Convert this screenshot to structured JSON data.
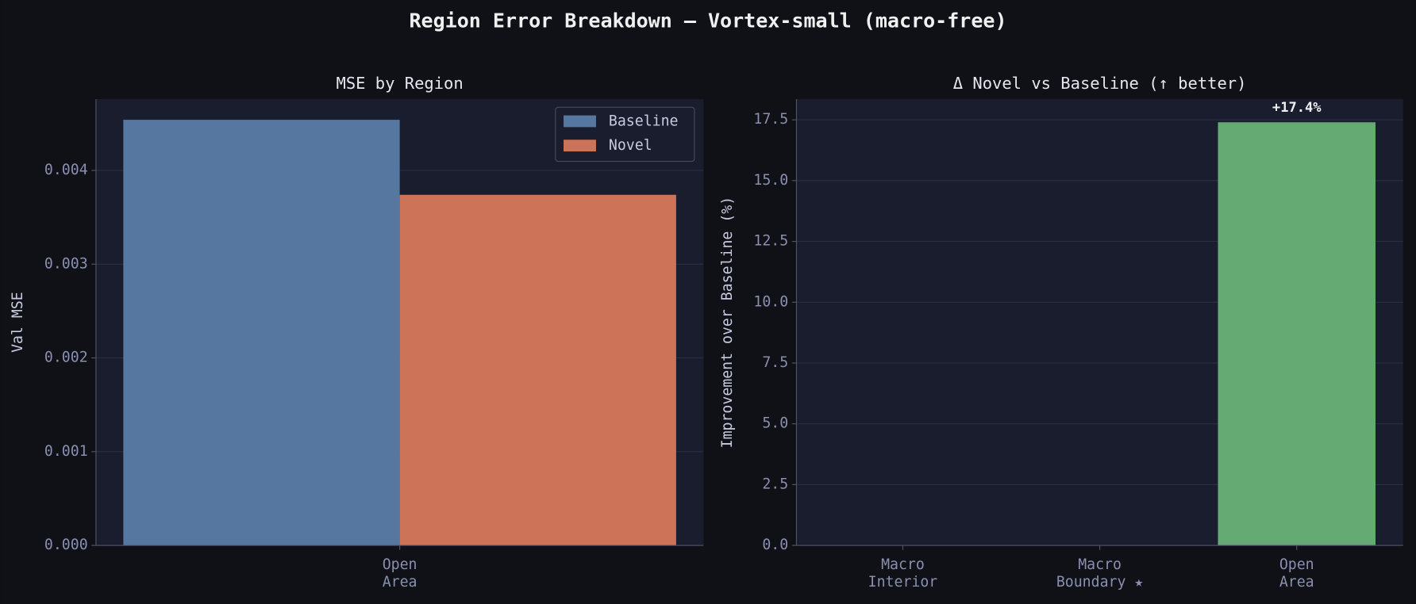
{
  "title": "Region Error Breakdown — Vortex-small (macro-free)",
  "chart_data": [
    {
      "type": "bar",
      "title": "MSE by Region",
      "y_label": "Val MSE",
      "categories": [
        "Open\nArea"
      ],
      "series": [
        {
          "name": "Baseline",
          "color": "#5677a0",
          "values": [
            0.00454
          ]
        },
        {
          "name": "Novel",
          "color": "#cc7358",
          "values": [
            0.00374
          ]
        }
      ],
      "ylim": [
        0,
        0.00476
      ],
      "yticks": [
        {
          "value": 0,
          "label": "0.000"
        },
        {
          "value": 0.001,
          "label": "0.001"
        },
        {
          "value": 0.002,
          "label": "0.002"
        },
        {
          "value": 0.003,
          "label": "0.003"
        },
        {
          "value": 0.004,
          "label": "0.004"
        }
      ],
      "grid": true,
      "legend": "upper right"
    },
    {
      "type": "bar",
      "title": "Δ Novel vs Baseline (↑ better)",
      "y_label": "Improvement over Baseline (%)",
      "categories": [
        "Macro\nInterior",
        "Macro\nBoundary ★",
        "Open\nArea"
      ],
      "series": [
        {
          "color": "#66aa73",
          "values": [
            null,
            null,
            17.4
          ],
          "value_labels": [
            null,
            null,
            "+17.4%"
          ]
        }
      ],
      "ylim": [
        0,
        18.35
      ],
      "yticks": [
        {
          "value": 0,
          "label": "0.0"
        },
        2.5,
        {
          "value": 5,
          "label": "5.0"
        },
        7.5,
        {
          "value": 10,
          "label": "10.0"
        },
        12.5,
        {
          "value": 15,
          "label": "15.0"
        },
        17.5
      ],
      "grid": true
    }
  ]
}
